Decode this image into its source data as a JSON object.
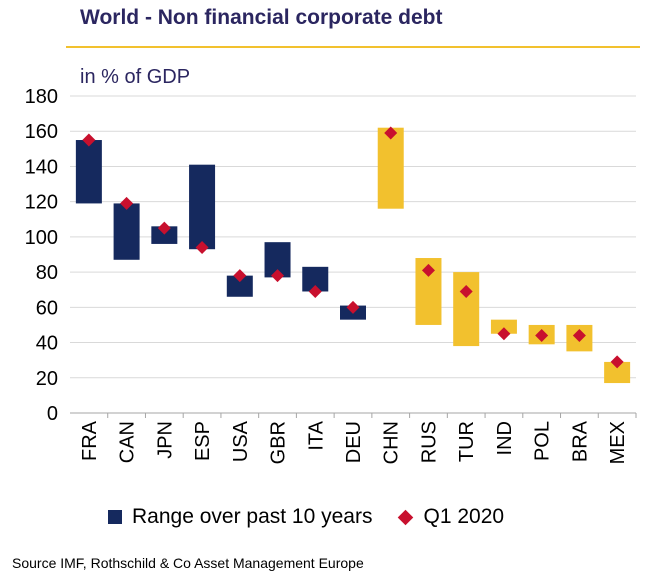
{
  "header": {
    "title": "World - Non financial corporate debt",
    "unit_label": "in % of GDP"
  },
  "chart_data": {
    "type": "bar",
    "subtype": "floating-range-with-markers",
    "title": "World - Non financial corporate debt",
    "ylabel": "in % of GDP",
    "ylim": [
      0,
      180
    ],
    "yticks": [
      0,
      20,
      40,
      60,
      80,
      100,
      120,
      140,
      160,
      180
    ],
    "grid": true,
    "legend_position": "bottom",
    "categories": [
      "FRA",
      "CAN",
      "JPN",
      "ESP",
      "USA",
      "GBR",
      "ITA",
      "DEU",
      "CHN",
      "RUS",
      "TUR",
      "IND",
      "POL",
      "BRA",
      "MEX"
    ],
    "range_low": [
      119,
      87,
      96,
      93,
      66,
      77,
      69,
      53,
      116,
      50,
      38,
      45,
      39,
      35,
      17
    ],
    "range_high": [
      155,
      119,
      106,
      141,
      78,
      97,
      83,
      61,
      162,
      88,
      80,
      53,
      50,
      50,
      29
    ],
    "q1_2020": [
      155,
      119,
      105,
      94,
      78,
      78,
      69,
      60,
      159,
      81,
      69,
      45,
      44,
      44,
      29
    ],
    "group": [
      "advanced",
      "advanced",
      "advanced",
      "advanced",
      "advanced",
      "advanced",
      "advanced",
      "advanced",
      "emerging",
      "emerging",
      "emerging",
      "emerging",
      "emerging",
      "emerging",
      "emerging"
    ],
    "series": [
      {
        "name": "Range over past 10 years"
      },
      {
        "name": "Q1 2020"
      }
    ],
    "colors": {
      "advanced": "#15295e",
      "emerging": "#f2c12e",
      "marker": "#c8102e",
      "grid": "#d9d9d9",
      "title": "#2b2660"
    }
  },
  "legend": {
    "range_label": "Range over past 10 years",
    "marker_label": "Q1 2020"
  },
  "footer": {
    "source": "Source IMF, Rothschild & Co Asset Management Europe"
  }
}
